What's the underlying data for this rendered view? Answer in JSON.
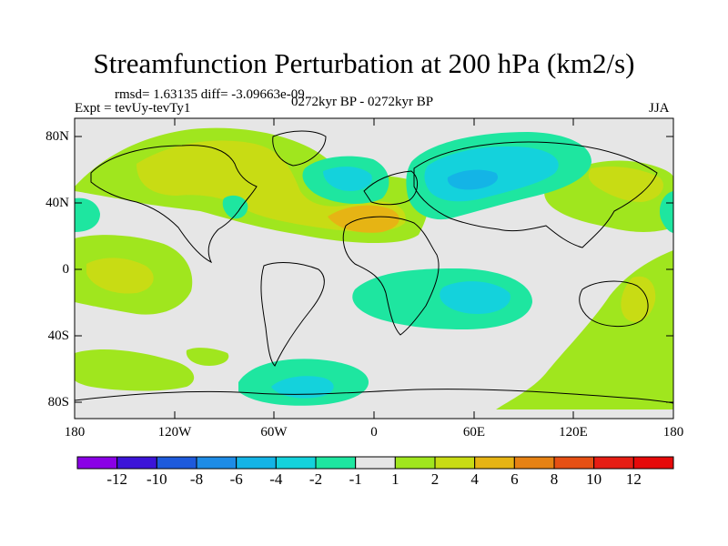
{
  "title": "Streamfunction Perturbation at 200 hPa (km2/s)",
  "stats_line": "rmsd= 1.63135 diff= -3.09663e-09",
  "expt_line": "Expt = tevUy-tevTy1",
  "period_line": "0272kyr BP - 0272kyr BP",
  "season": "JJA",
  "lat_ticks": [
    "80N",
    "40N",
    "0",
    "40S",
    "80S"
  ],
  "lon_ticks": [
    "180",
    "120W",
    "60W",
    "0",
    "60E",
    "120E",
    "180"
  ],
  "colorbar": {
    "labels": [
      "-12",
      "-10",
      "-8",
      "-6",
      "-4",
      "-2",
      "-1",
      "1",
      "2",
      "4",
      "6",
      "8",
      "10",
      "12"
    ],
    "colors": [
      "#8a00e6",
      "#3c14d8",
      "#1e5adc",
      "#1e8ce6",
      "#14b4e6",
      "#14d2dc",
      "#1ee6a0",
      "#e6e6e6",
      "#a0e61e",
      "#c8dc14",
      "#e6b414",
      "#e68214",
      "#e65014",
      "#e61e14",
      "#e60a0a"
    ]
  },
  "fill_colors": {
    "background": "#e6e6e6",
    "pos1": "#a0e61e",
    "pos2": "#c8dc14",
    "pos3": "#e6b414",
    "pos4": "#e68214",
    "neg1": "#1ee6a0",
    "neg2": "#14d2dc",
    "neg3": "#14b4e6"
  }
}
